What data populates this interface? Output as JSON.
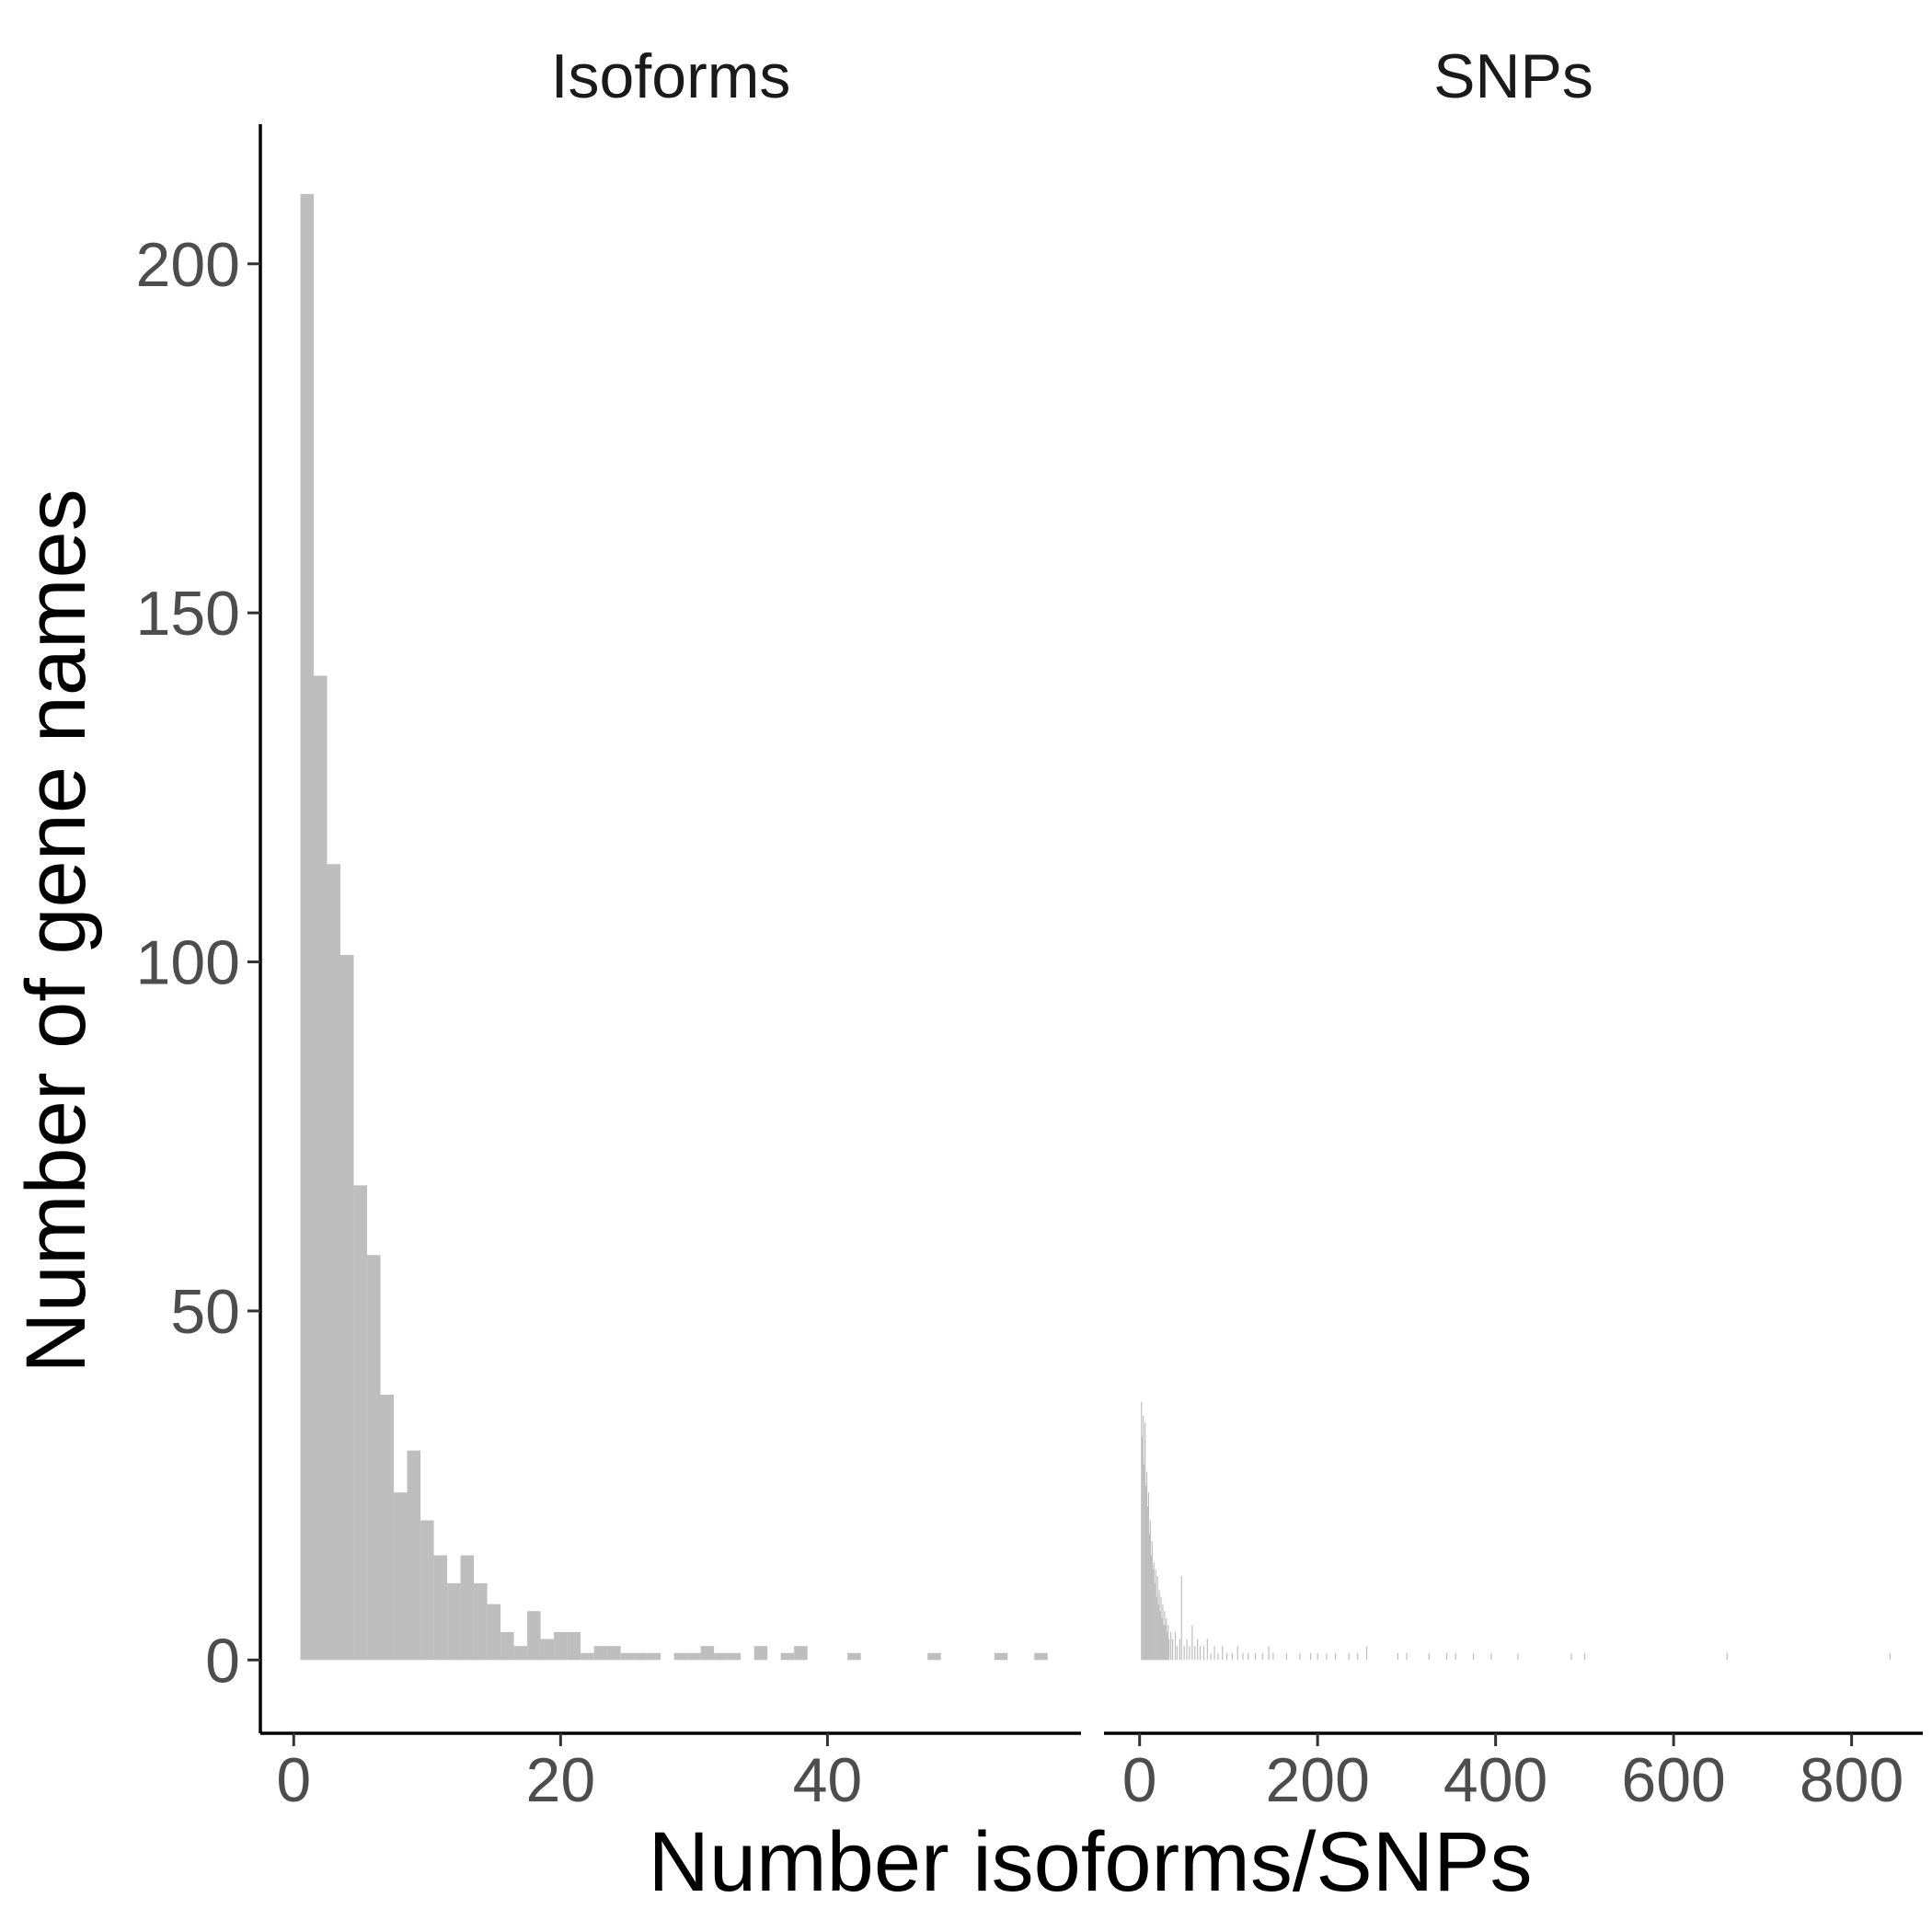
{
  "chart_data": {
    "type": "bar",
    "title": "",
    "xlabel": "Number isoforms/SNPs",
    "ylabel": "Number of gene names",
    "ylim": [
      -10.5,
      220
    ],
    "y_ticks": [
      0,
      50,
      100,
      150,
      200
    ],
    "grid": false,
    "legend": "none",
    "bar_color": "#bebebe",
    "panels": [
      {
        "name": "Isoforms",
        "xlim": [
          -2.5,
          59
        ],
        "x_ticks": [
          0,
          20,
          40
        ],
        "bin_width": 1,
        "bins": [
          {
            "x": 1,
            "count": 210
          },
          {
            "x": 2,
            "count": 141
          },
          {
            "x": 3,
            "count": 114
          },
          {
            "x": 4,
            "count": 101
          },
          {
            "x": 5,
            "count": 68
          },
          {
            "x": 6,
            "count": 58
          },
          {
            "x": 7,
            "count": 38
          },
          {
            "x": 8,
            "count": 24
          },
          {
            "x": 9,
            "count": 30
          },
          {
            "x": 10,
            "count": 20
          },
          {
            "x": 11,
            "count": 15
          },
          {
            "x": 12,
            "count": 11
          },
          {
            "x": 13,
            "count": 15
          },
          {
            "x": 14,
            "count": 11
          },
          {
            "x": 15,
            "count": 8
          },
          {
            "x": 16,
            "count": 4
          },
          {
            "x": 17,
            "count": 2
          },
          {
            "x": 18,
            "count": 7
          },
          {
            "x": 19,
            "count": 3
          },
          {
            "x": 20,
            "count": 4
          },
          {
            "x": 21,
            "count": 4
          },
          {
            "x": 22,
            "count": 1
          },
          {
            "x": 23,
            "count": 2
          },
          {
            "x": 24,
            "count": 2
          },
          {
            "x": 25,
            "count": 1
          },
          {
            "x": 26,
            "count": 1
          },
          {
            "x": 27,
            "count": 1
          },
          {
            "x": 29,
            "count": 1
          },
          {
            "x": 30,
            "count": 1
          },
          {
            "x": 31,
            "count": 2
          },
          {
            "x": 32,
            "count": 1
          },
          {
            "x": 33,
            "count": 1
          },
          {
            "x": 35,
            "count": 2
          },
          {
            "x": 37,
            "count": 1
          },
          {
            "x": 38,
            "count": 2
          },
          {
            "x": 42,
            "count": 1
          },
          {
            "x": 48,
            "count": 1
          },
          {
            "x": 53,
            "count": 1
          },
          {
            "x": 56,
            "count": 1
          }
        ]
      },
      {
        "name": "SNPs",
        "xlim": [
          -40,
          880
        ],
        "x_ticks": [
          0,
          200,
          400,
          600,
          800
        ],
        "bin_width": 1,
        "bins": [
          {
            "x": 2,
            "count": 37
          },
          {
            "x": 3,
            "count": 32
          },
          {
            "x": 4,
            "count": 35
          },
          {
            "x": 5,
            "count": 28
          },
          {
            "x": 6,
            "count": 34
          },
          {
            "x": 7,
            "count": 25
          },
          {
            "x": 8,
            "count": 27
          },
          {
            "x": 9,
            "count": 22
          },
          {
            "x": 10,
            "count": 24
          },
          {
            "x": 11,
            "count": 18
          },
          {
            "x": 12,
            "count": 20
          },
          {
            "x": 13,
            "count": 15
          },
          {
            "x": 14,
            "count": 17
          },
          {
            "x": 15,
            "count": 13
          },
          {
            "x": 16,
            "count": 14
          },
          {
            "x": 17,
            "count": 11
          },
          {
            "x": 18,
            "count": 13
          },
          {
            "x": 19,
            "count": 9
          },
          {
            "x": 20,
            "count": 12
          },
          {
            "x": 21,
            "count": 8
          },
          {
            "x": 22,
            "count": 10
          },
          {
            "x": 23,
            "count": 7
          },
          {
            "x": 24,
            "count": 9
          },
          {
            "x": 25,
            "count": 6
          },
          {
            "x": 26,
            "count": 8
          },
          {
            "x": 27,
            "count": 5
          },
          {
            "x": 28,
            "count": 7
          },
          {
            "x": 29,
            "count": 5
          },
          {
            "x": 30,
            "count": 6
          },
          {
            "x": 31,
            "count": 4
          },
          {
            "x": 32,
            "count": 5
          },
          {
            "x": 33,
            "count": 3
          },
          {
            "x": 35,
            "count": 4
          },
          {
            "x": 37,
            "count": 3
          },
          {
            "x": 40,
            "count": 4
          },
          {
            "x": 42,
            "count": 2
          },
          {
            "x": 45,
            "count": 3
          },
          {
            "x": 47,
            "count": 12
          },
          {
            "x": 50,
            "count": 2
          },
          {
            "x": 53,
            "count": 3
          },
          {
            "x": 56,
            "count": 2
          },
          {
            "x": 59,
            "count": 5
          },
          {
            "x": 62,
            "count": 2
          },
          {
            "x": 65,
            "count": 3
          },
          {
            "x": 68,
            "count": 2
          },
          {
            "x": 72,
            "count": 2
          },
          {
            "x": 76,
            "count": 3
          },
          {
            "x": 80,
            "count": 1
          },
          {
            "x": 84,
            "count": 2
          },
          {
            "x": 88,
            "count": 1
          },
          {
            "x": 93,
            "count": 2
          },
          {
            "x": 98,
            "count": 1
          },
          {
            "x": 104,
            "count": 1
          },
          {
            "x": 110,
            "count": 2
          },
          {
            "x": 116,
            "count": 1
          },
          {
            "x": 122,
            "count": 1
          },
          {
            "x": 130,
            "count": 1
          },
          {
            "x": 138,
            "count": 1
          },
          {
            "x": 145,
            "count": 2
          },
          {
            "x": 150,
            "count": 1
          },
          {
            "x": 165,
            "count": 1
          },
          {
            "x": 180,
            "count": 1
          },
          {
            "x": 192,
            "count": 1
          },
          {
            "x": 200,
            "count": 1
          },
          {
            "x": 210,
            "count": 1
          },
          {
            "x": 220,
            "count": 1
          },
          {
            "x": 235,
            "count": 1
          },
          {
            "x": 245,
            "count": 1
          },
          {
            "x": 255,
            "count": 2
          },
          {
            "x": 290,
            "count": 1
          },
          {
            "x": 300,
            "count": 1
          },
          {
            "x": 325,
            "count": 1
          },
          {
            "x": 345,
            "count": 1
          },
          {
            "x": 355,
            "count": 1
          },
          {
            "x": 375,
            "count": 1
          },
          {
            "x": 395,
            "count": 1
          },
          {
            "x": 425,
            "count": 1
          },
          {
            "x": 485,
            "count": 1
          },
          {
            "x": 500,
            "count": 1
          },
          {
            "x": 660,
            "count": 1
          },
          {
            "x": 843,
            "count": 1
          }
        ]
      }
    ]
  }
}
